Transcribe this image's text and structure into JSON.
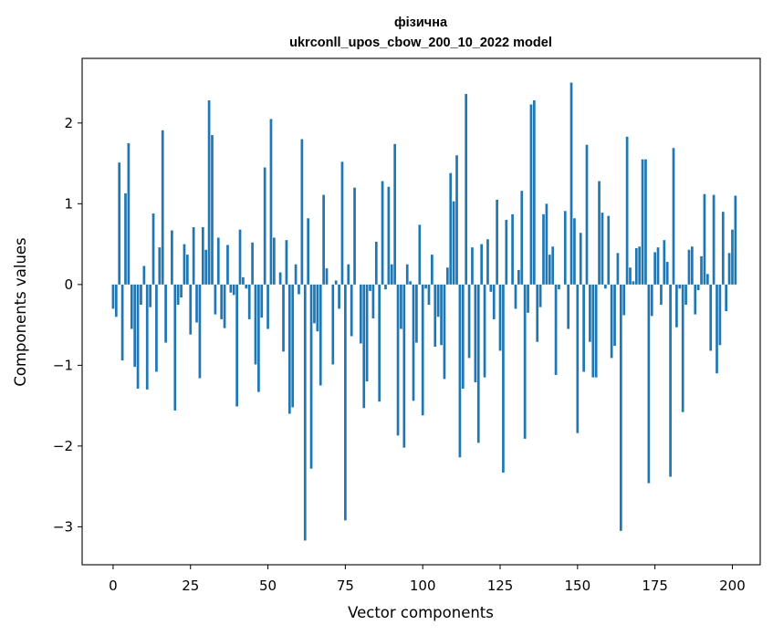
{
  "chart_data": {
    "type": "bar",
    "title_line1": "фізична",
    "title_line2": "ukrconll_upos_cbow_200_10_2022 model",
    "xlabel": "Vector components",
    "ylabel": "Components values",
    "xlim": [
      -10,
      209
    ],
    "ylim": [
      -3.47,
      2.8
    ],
    "xticks": [
      0,
      25,
      50,
      75,
      100,
      125,
      150,
      175,
      200
    ],
    "xtick_labels": [
      "0",
      "25",
      "50",
      "75",
      "100",
      "125",
      "150",
      "175",
      "200"
    ],
    "yticks": [
      -3,
      -2,
      -1,
      0,
      1,
      2
    ],
    "ytick_labels": [
      "−3",
      "−2",
      "−1",
      "0",
      "1",
      "2"
    ],
    "bar_color": "#1f77b4",
    "values": [
      -0.3,
      -0.4,
      1.51,
      -0.94,
      1.13,
      1.75,
      -0.55,
      -1.02,
      -1.29,
      -0.25,
      0.23,
      -1.3,
      -0.28,
      0.88,
      -1.08,
      0.46,
      1.91,
      -0.72,
      0.0,
      0.67,
      -1.56,
      -0.25,
      -0.16,
      0.5,
      0.37,
      -0.62,
      0.71,
      -0.47,
      -1.16,
      0.71,
      0.43,
      2.28,
      1.85,
      -0.37,
      0.58,
      -0.43,
      -0.54,
      0.49,
      -0.1,
      -0.13,
      -1.51,
      0.68,
      0.09,
      -0.05,
      -0.43,
      0.52,
      -0.99,
      -1.33,
      -0.41,
      1.45,
      -0.55,
      2.05,
      0.58,
      0.0,
      0.15,
      -0.83,
      0.55,
      -1.6,
      -1.52,
      0.25,
      -0.12,
      1.8,
      -3.17,
      0.82,
      -2.28,
      -0.48,
      -0.58,
      -1.25,
      1.11,
      0.2,
      0.0,
      -0.99,
      0.05,
      -0.3,
      1.52,
      -2.92,
      0.25,
      -0.64,
      1.2,
      0.0,
      -0.73,
      -1.53,
      -1.2,
      -0.08,
      -0.42,
      0.53,
      -1.45,
      1.28,
      -0.06,
      1.21,
      0.25,
      1.74,
      -1.87,
      -0.55,
      -2.02,
      0.25,
      0.04,
      -1.44,
      -0.72,
      0.74,
      -1.62,
      -0.05,
      -0.25,
      0.37,
      -0.77,
      -0.4,
      -0.75,
      -1.17,
      0.21,
      1.38,
      1.03,
      1.6,
      -2.14,
      -1.29,
      2.36,
      -0.91,
      0.46,
      -1.21,
      -1.96,
      0.5,
      -1.15,
      0.56,
      -0.09,
      -0.43,
      1.05,
      -0.82,
      -2.33,
      0.8,
      0.0,
      0.87,
      -0.3,
      0.18,
      1.16,
      -1.91,
      -0.35,
      2.23,
      2.28,
      -0.71,
      -0.28,
      0.87,
      1.0,
      0.37,
      0.47,
      -1.12,
      -0.06,
      0.0,
      0.91,
      -0.55,
      2.5,
      0.82,
      -1.84,
      0.64,
      -1.08,
      1.73,
      -0.71,
      -1.15,
      -1.15,
      1.28,
      0.89,
      -0.05,
      0.85,
      -0.91,
      -0.76,
      0.39,
      -3.05,
      -0.38,
      1.83,
      0.21,
      0.04,
      0.45,
      0.47,
      1.55,
      1.55,
      -2.46,
      -0.39,
      0.4,
      0.46,
      -0.25,
      0.55,
      0.28,
      -2.38,
      1.69,
      -0.53,
      -0.05,
      -1.58,
      -0.25,
      0.43,
      0.47,
      -0.37,
      -0.07,
      0.35,
      1.12,
      0.13,
      -0.82,
      1.11,
      -1.1,
      -0.75,
      0.9,
      -0.33,
      0.39,
      0.68,
      1.1
    ]
  }
}
